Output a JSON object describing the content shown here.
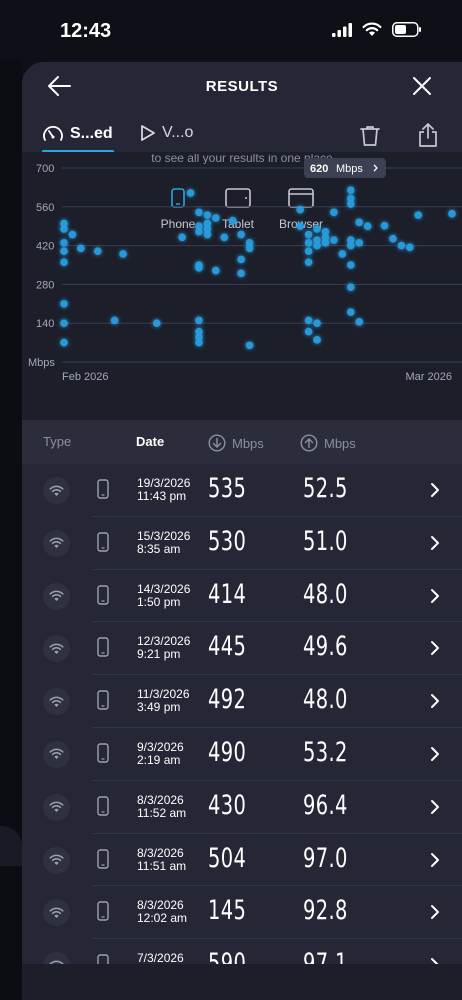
{
  "status_bar": {
    "time": "12:43"
  },
  "header": {
    "title": "RESULTS"
  },
  "tabs": [
    {
      "label": "S...ed",
      "active": true
    },
    {
      "label": "V...o",
      "active": false
    }
  ],
  "chart_intro_text": "to see all your results in one place",
  "device_filters": [
    {
      "label": "Phone",
      "active": true
    },
    {
      "label": "Tablet",
      "active": false
    },
    {
      "label": "Browser",
      "active": false
    }
  ],
  "colors": {
    "accent": "#2aa6e0",
    "point": "#2a9fe0",
    "sheet": "#252737",
    "chart_bg": "#1c1e2a"
  },
  "chart_data": {
    "type": "scatter",
    "ylabel": "Mbps",
    "yticks": [
      700,
      560,
      420,
      280,
      140
    ],
    "ylim": [
      0,
      700
    ],
    "x_labels": [
      "Feb 2026",
      "Mar 2026"
    ],
    "x_range": [
      "2026-02-01",
      "2026-03-19"
    ],
    "tooltip": {
      "value": "620",
      "unit": "Mbps"
    },
    "grid": true,
    "points": [
      [
        "2026-02-01",
        480
      ],
      [
        "2026-02-01",
        500
      ],
      [
        "2026-02-01",
        430
      ],
      [
        "2026-02-01",
        400
      ],
      [
        "2026-02-01",
        360
      ],
      [
        "2026-02-01",
        210
      ],
      [
        "2026-02-01",
        140
      ],
      [
        "2026-02-01",
        70
      ],
      [
        "2026-02-02",
        460
      ],
      [
        "2026-02-03",
        410
      ],
      [
        "2026-02-05",
        400
      ],
      [
        "2026-02-07",
        150
      ],
      [
        "2026-02-08",
        390
      ],
      [
        "2026-02-12",
        140
      ],
      [
        "2026-02-15",
        450
      ],
      [
        "2026-02-16",
        610
      ],
      [
        "2026-02-17",
        540
      ],
      [
        "2026-02-17",
        490
      ],
      [
        "2026-02-17",
        470
      ],
      [
        "2026-02-17",
        350
      ],
      [
        "2026-02-17",
        340
      ],
      [
        "2026-02-17",
        150
      ],
      [
        "2026-02-17",
        110
      ],
      [
        "2026-02-17",
        90
      ],
      [
        "2026-02-17",
        70
      ],
      [
        "2026-02-18",
        530
      ],
      [
        "2026-02-18",
        480
      ],
      [
        "2026-02-18",
        460
      ],
      [
        "2026-02-18",
        500
      ],
      [
        "2026-02-19",
        520
      ],
      [
        "2026-02-19",
        330
      ],
      [
        "2026-02-20",
        450
      ],
      [
        "2026-02-21",
        510
      ],
      [
        "2026-02-22",
        460
      ],
      [
        "2026-02-22",
        370
      ],
      [
        "2026-02-22",
        320
      ],
      [
        "2026-02-23",
        430
      ],
      [
        "2026-02-23",
        410
      ],
      [
        "2026-02-23",
        60
      ],
      [
        "2026-03-01",
        550
      ],
      [
        "2026-03-01",
        490
      ],
      [
        "2026-03-02",
        460
      ],
      [
        "2026-03-02",
        430
      ],
      [
        "2026-03-02",
        400
      ],
      [
        "2026-03-02",
        150
      ],
      [
        "2026-03-02",
        360
      ],
      [
        "2026-03-02",
        110
      ],
      [
        "2026-03-03",
        480
      ],
      [
        "2026-03-03",
        440
      ],
      [
        "2026-03-03",
        420
      ],
      [
        "2026-03-03",
        140
      ],
      [
        "2026-03-03",
        80
      ],
      [
        "2026-03-04",
        470
      ],
      [
        "2026-03-04",
        450
      ],
      [
        "2026-03-04",
        430
      ],
      [
        "2026-03-05",
        540
      ],
      [
        "2026-03-05",
        440
      ],
      [
        "2026-03-06",
        390
      ],
      [
        "2026-03-07",
        620
      ],
      [
        "2026-03-07",
        590
      ],
      [
        "2026-03-07",
        570
      ],
      [
        "2026-03-07",
        440
      ],
      [
        "2026-03-07",
        420
      ],
      [
        "2026-03-07",
        350
      ],
      [
        "2026-03-07",
        270
      ],
      [
        "2026-03-07",
        180
      ],
      [
        "2026-03-08",
        145
      ],
      [
        "2026-03-08",
        504
      ],
      [
        "2026-03-08",
        430
      ],
      [
        "2026-03-09",
        490
      ],
      [
        "2026-03-11",
        492
      ],
      [
        "2026-03-12",
        445
      ],
      [
        "2026-03-13",
        420
      ],
      [
        "2026-03-14",
        414
      ],
      [
        "2026-03-15",
        530
      ],
      [
        "2026-03-19",
        535
      ]
    ]
  },
  "table": {
    "headers": {
      "type": "Type",
      "date": "Date",
      "down": "Mbps",
      "up": "Mbps"
    },
    "rows": [
      {
        "date": "19/3/2026",
        "time": "11:43 pm",
        "down": "535",
        "up": "52.5"
      },
      {
        "date": "15/3/2026",
        "time": "8:35 am",
        "down": "530",
        "up": "51.0"
      },
      {
        "date": "14/3/2026",
        "time": "1:50 pm",
        "down": "414",
        "up": "48.0"
      },
      {
        "date": "12/3/2026",
        "time": "9:21 pm",
        "down": "445",
        "up": "49.6"
      },
      {
        "date": "11/3/2026",
        "time": "3:49 pm",
        "down": "492",
        "up": "48.0"
      },
      {
        "date": "9/3/2026",
        "time": "2:19 am",
        "down": "490",
        "up": "53.2"
      },
      {
        "date": "8/3/2026",
        "time": "11:52 am",
        "down": "430",
        "up": "96.4"
      },
      {
        "date": "8/3/2026",
        "time": "11:51 am",
        "down": "504",
        "up": "97.0"
      },
      {
        "date": "8/3/2026",
        "time": "12:02 am",
        "down": "145",
        "up": "92.8"
      },
      {
        "date": "7/3/2026",
        "time": "",
        "down": "590",
        "up": "97.1"
      }
    ]
  }
}
